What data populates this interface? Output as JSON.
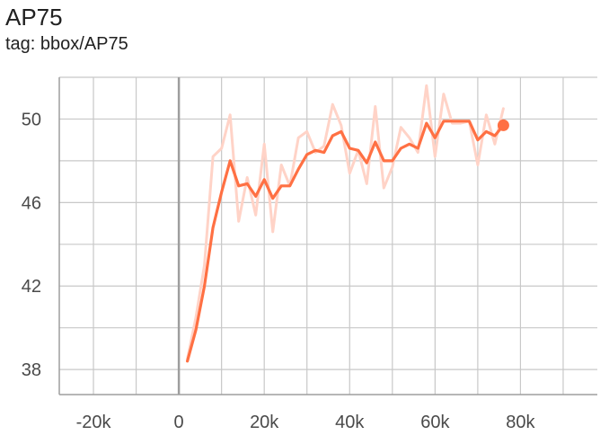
{
  "header": {
    "title": "AP75",
    "subtitle": "tag: bbox/AP75"
  },
  "chart_data": {
    "type": "line",
    "title": "AP75",
    "subtitle": "tag: bbox/AP75",
    "xlabel": "",
    "ylabel": "",
    "xlim": [
      -28000,
      98000
    ],
    "ylim": [
      36.8,
      52
    ],
    "x_ticks": [
      -20000,
      0,
      20000,
      40000,
      60000,
      80000
    ],
    "x_tick_labels": [
      "-20k",
      "0",
      "20k",
      "40k",
      "60k",
      "80k"
    ],
    "y_ticks": [
      38,
      42,
      46,
      50
    ],
    "y_tick_labels": [
      "38",
      "42",
      "46",
      "50"
    ],
    "grid": true,
    "colors": {
      "smoothed": "#ff7043",
      "raw": "#ffd3c7",
      "axis": "#9e9e9e",
      "grid": "#c8c8c8"
    },
    "series": [
      {
        "kind": "raw",
        "x": [
          2000,
          4000,
          6000,
          8000,
          10000,
          12000,
          14000,
          16000,
          18000,
          20000,
          22000,
          24000,
          26000,
          28000,
          30000,
          32000,
          34000,
          36000,
          38000,
          40000,
          42000,
          44000,
          46000,
          48000,
          50000,
          52000,
          54000,
          56000,
          58000,
          60000,
          62000,
          64000,
          66000,
          68000,
          70000,
          72000,
          74000,
          76000
        ],
        "y": [
          38.5,
          40.5,
          43.0,
          48.2,
          48.6,
          50.2,
          45.1,
          47.2,
          45.4,
          48.8,
          44.6,
          47.8,
          46.8,
          49.1,
          49.4,
          48.4,
          48.7,
          50.7,
          49.7,
          47.4,
          48.5,
          46.9,
          50.6,
          46.7,
          47.7,
          49.6,
          49.1,
          48.4,
          51.6,
          48.2,
          51.2,
          49.8,
          49.8,
          49.9,
          47.8,
          50.2,
          48.8,
          50.5
        ]
      },
      {
        "kind": "smoothed",
        "x": [
          2000,
          4000,
          6000,
          8000,
          10000,
          12000,
          14000,
          16000,
          18000,
          20000,
          22000,
          24000,
          26000,
          28000,
          30000,
          32000,
          34000,
          36000,
          38000,
          40000,
          42000,
          44000,
          46000,
          48000,
          50000,
          52000,
          54000,
          56000,
          58000,
          60000,
          62000,
          64000,
          66000,
          68000,
          70000,
          72000,
          74000,
          76000
        ],
        "y": [
          38.4,
          39.9,
          42.0,
          44.8,
          46.5,
          48.0,
          46.8,
          46.9,
          46.3,
          47.1,
          46.2,
          46.8,
          46.8,
          47.6,
          48.3,
          48.5,
          48.4,
          49.2,
          49.4,
          48.6,
          48.5,
          47.9,
          48.9,
          48.0,
          48.0,
          48.6,
          48.8,
          48.6,
          49.8,
          49.1,
          49.9,
          49.9,
          49.9,
          49.9,
          49.0,
          49.4,
          49.2,
          49.7
        ]
      }
    ]
  }
}
